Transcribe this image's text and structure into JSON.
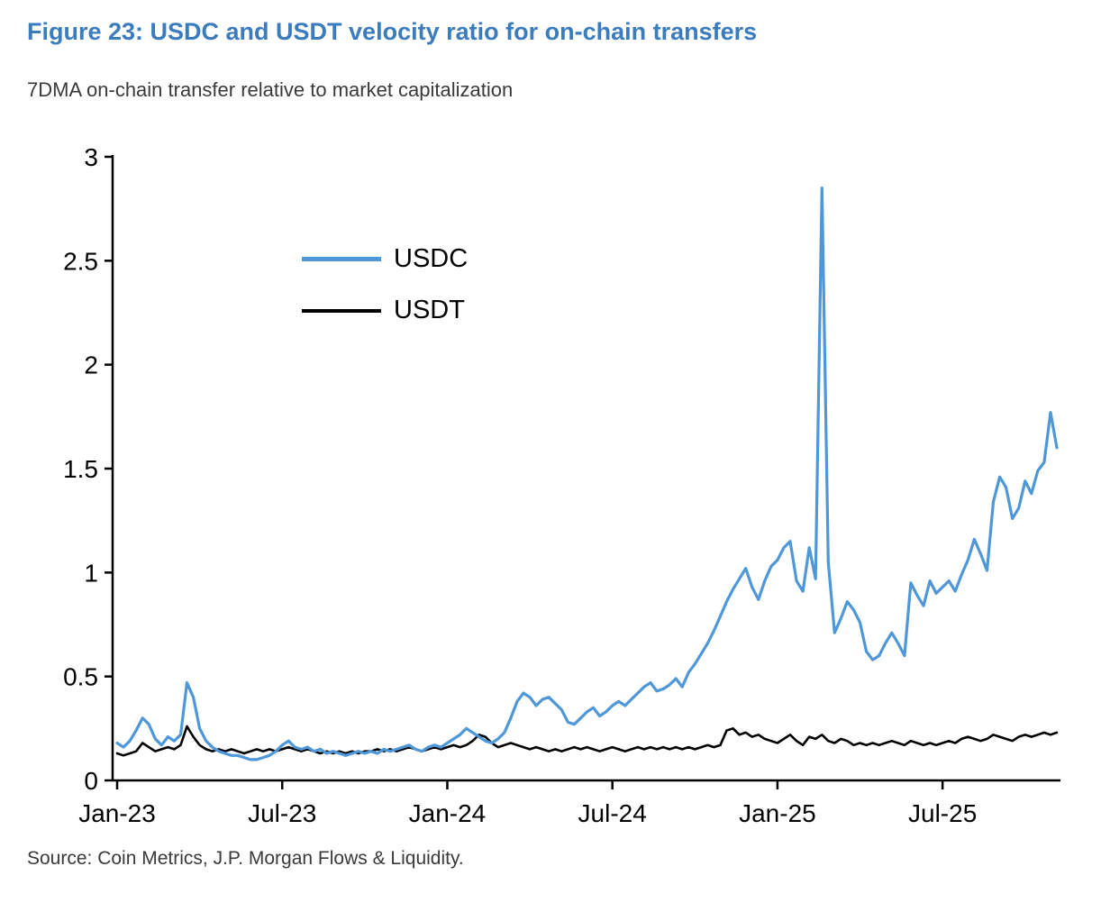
{
  "figure": {
    "title": "Figure 23: USDC and USDT velocity ratio for on-chain transfers",
    "subtitle": "7DMA on-chain transfer relative to market capitalization",
    "source": "Source: Coin Metrics, J.P. Morgan Flows & Liquidity."
  },
  "colors": {
    "title": "#3A7CBE",
    "usdc": "#4E97D9",
    "usdt": "#000000",
    "axis": "#000000"
  },
  "chart_data": {
    "type": "line",
    "title": "Figure 23: USDC and USDT velocity ratio for on-chain transfers",
    "subtitle": "7DMA on-chain transfer relative to market capitalization",
    "xlabel": "",
    "ylabel": "",
    "grid": false,
    "legend_position": "upper-left-inside",
    "x_unit": "weeks since Jan-2023",
    "xlim": [
      0,
      148
    ],
    "ylim": [
      0,
      3
    ],
    "x_ticks": [
      {
        "label": "Jan-23",
        "week": 0
      },
      {
        "label": "Jul-23",
        "week": 26
      },
      {
        "label": "Jan-24",
        "week": 52
      },
      {
        "label": "Jul-24",
        "week": 78
      },
      {
        "label": "Jan-25",
        "week": 104
      },
      {
        "label": "Jul-25",
        "week": 130
      }
    ],
    "y_ticks": [
      {
        "label": "0",
        "value": 0
      },
      {
        "label": "0.5",
        "value": 0.5
      },
      {
        "label": "1",
        "value": 1
      },
      {
        "label": "1.5",
        "value": 1.5
      },
      {
        "label": "2",
        "value": 2
      },
      {
        "label": "2.5",
        "value": 2.5
      },
      {
        "label": "3",
        "value": 3
      }
    ],
    "legend": [
      {
        "name": "USDC"
      },
      {
        "name": "USDT"
      }
    ],
    "series": [
      {
        "name": "USDC",
        "color": "#4E97D9",
        "values": [
          0.18,
          0.16,
          0.19,
          0.24,
          0.3,
          0.27,
          0.2,
          0.17,
          0.21,
          0.19,
          0.22,
          0.47,
          0.4,
          0.25,
          0.19,
          0.16,
          0.14,
          0.13,
          0.12,
          0.12,
          0.11,
          0.1,
          0.1,
          0.11,
          0.12,
          0.14,
          0.17,
          0.19,
          0.16,
          0.15,
          0.16,
          0.14,
          0.15,
          0.13,
          0.14,
          0.13,
          0.12,
          0.13,
          0.14,
          0.13,
          0.14,
          0.13,
          0.15,
          0.14,
          0.15,
          0.16,
          0.17,
          0.15,
          0.14,
          0.16,
          0.17,
          0.16,
          0.18,
          0.2,
          0.22,
          0.25,
          0.23,
          0.21,
          0.19,
          0.18,
          0.2,
          0.23,
          0.3,
          0.38,
          0.42,
          0.4,
          0.36,
          0.39,
          0.4,
          0.37,
          0.34,
          0.28,
          0.27,
          0.3,
          0.33,
          0.35,
          0.31,
          0.33,
          0.36,
          0.38,
          0.36,
          0.39,
          0.42,
          0.45,
          0.47,
          0.43,
          0.44,
          0.46,
          0.49,
          0.45,
          0.52,
          0.56,
          0.61,
          0.66,
          0.72,
          0.79,
          0.86,
          0.92,
          0.97,
          1.02,
          0.93,
          0.87,
          0.96,
          1.03,
          1.06,
          1.12,
          1.15,
          0.96,
          0.91,
          1.12,
          0.97,
          2.85,
          1.05,
          0.71,
          0.78,
          0.86,
          0.82,
          0.76,
          0.62,
          0.58,
          0.6,
          0.66,
          0.71,
          0.66,
          0.6,
          0.95,
          0.89,
          0.84,
          0.96,
          0.9,
          0.93,
          0.96,
          0.91,
          0.99,
          1.06,
          1.16,
          1.09,
          1.01,
          1.34,
          1.46,
          1.41,
          1.26,
          1.31,
          1.44,
          1.38,
          1.49,
          1.53,
          1.77,
          1.6
        ]
      },
      {
        "name": "USDT",
        "color": "#000000",
        "values": [
          0.13,
          0.12,
          0.13,
          0.14,
          0.18,
          0.16,
          0.14,
          0.15,
          0.16,
          0.15,
          0.17,
          0.26,
          0.21,
          0.17,
          0.15,
          0.14,
          0.15,
          0.14,
          0.15,
          0.14,
          0.13,
          0.14,
          0.15,
          0.14,
          0.15,
          0.14,
          0.15,
          0.16,
          0.15,
          0.14,
          0.15,
          0.14,
          0.13,
          0.14,
          0.13,
          0.14,
          0.13,
          0.14,
          0.13,
          0.14,
          0.14,
          0.15,
          0.14,
          0.15,
          0.14,
          0.15,
          0.16,
          0.15,
          0.14,
          0.15,
          0.16,
          0.15,
          0.16,
          0.17,
          0.16,
          0.17,
          0.19,
          0.22,
          0.21,
          0.18,
          0.16,
          0.17,
          0.18,
          0.17,
          0.16,
          0.15,
          0.16,
          0.15,
          0.14,
          0.15,
          0.14,
          0.15,
          0.16,
          0.15,
          0.16,
          0.15,
          0.14,
          0.15,
          0.16,
          0.15,
          0.14,
          0.15,
          0.16,
          0.15,
          0.16,
          0.15,
          0.16,
          0.15,
          0.16,
          0.15,
          0.16,
          0.15,
          0.16,
          0.17,
          0.16,
          0.17,
          0.24,
          0.25,
          0.22,
          0.23,
          0.21,
          0.22,
          0.2,
          0.19,
          0.18,
          0.2,
          0.22,
          0.19,
          0.17,
          0.21,
          0.2,
          0.22,
          0.19,
          0.18,
          0.2,
          0.19,
          0.17,
          0.18,
          0.17,
          0.18,
          0.17,
          0.18,
          0.19,
          0.18,
          0.17,
          0.19,
          0.18,
          0.17,
          0.18,
          0.17,
          0.18,
          0.19,
          0.18,
          0.2,
          0.21,
          0.2,
          0.19,
          0.2,
          0.22,
          0.21,
          0.2,
          0.19,
          0.21,
          0.22,
          0.21,
          0.22,
          0.23,
          0.22,
          0.23
        ]
      }
    ]
  }
}
